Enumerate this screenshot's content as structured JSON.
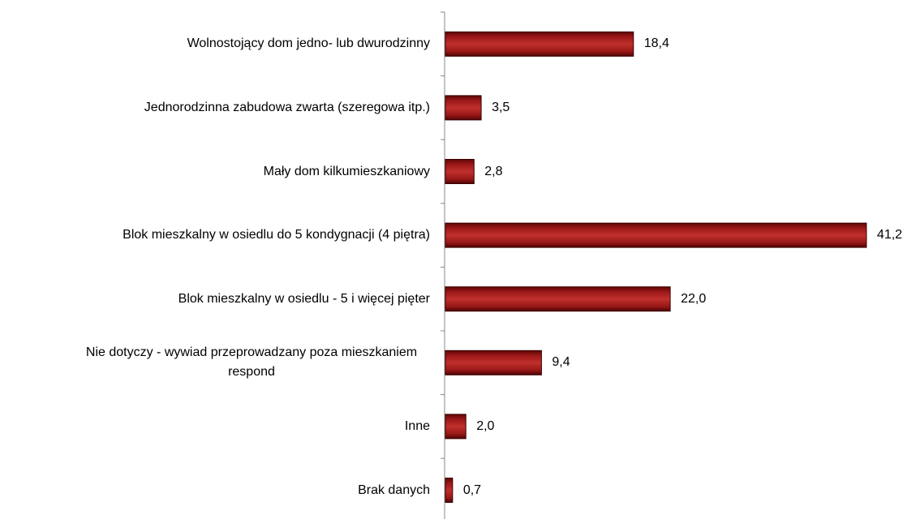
{
  "chart_data": {
    "type": "hbar",
    "categories": [
      "Wolnostojący dom jedno- lub dwurodzinny",
      "Jednorodzinna zabudowa zwarta (szeregowa itp.)",
      "Mały dom kilkumieszkaniowy",
      "Blok mieszkalny w osiedlu do 5 kondygnacji (4 piętra)",
      "Blok mieszkalny w osiedlu - 5 i więcej pięter",
      "Nie dotyczy - wywiad przeprowadzany poza mieszkaniem respond",
      "Inne",
      "Brak danych"
    ],
    "values": [
      18.4,
      3.5,
      2.8,
      41.2,
      22.0,
      9.4,
      2.0,
      0.7
    ],
    "value_labels": [
      "18,4",
      "3,5",
      "2,8",
      "41,2",
      "22,0",
      "9,4",
      "2,0",
      "0,7"
    ],
    "color": "#a01c1c",
    "xlim": [
      0,
      42
    ]
  }
}
